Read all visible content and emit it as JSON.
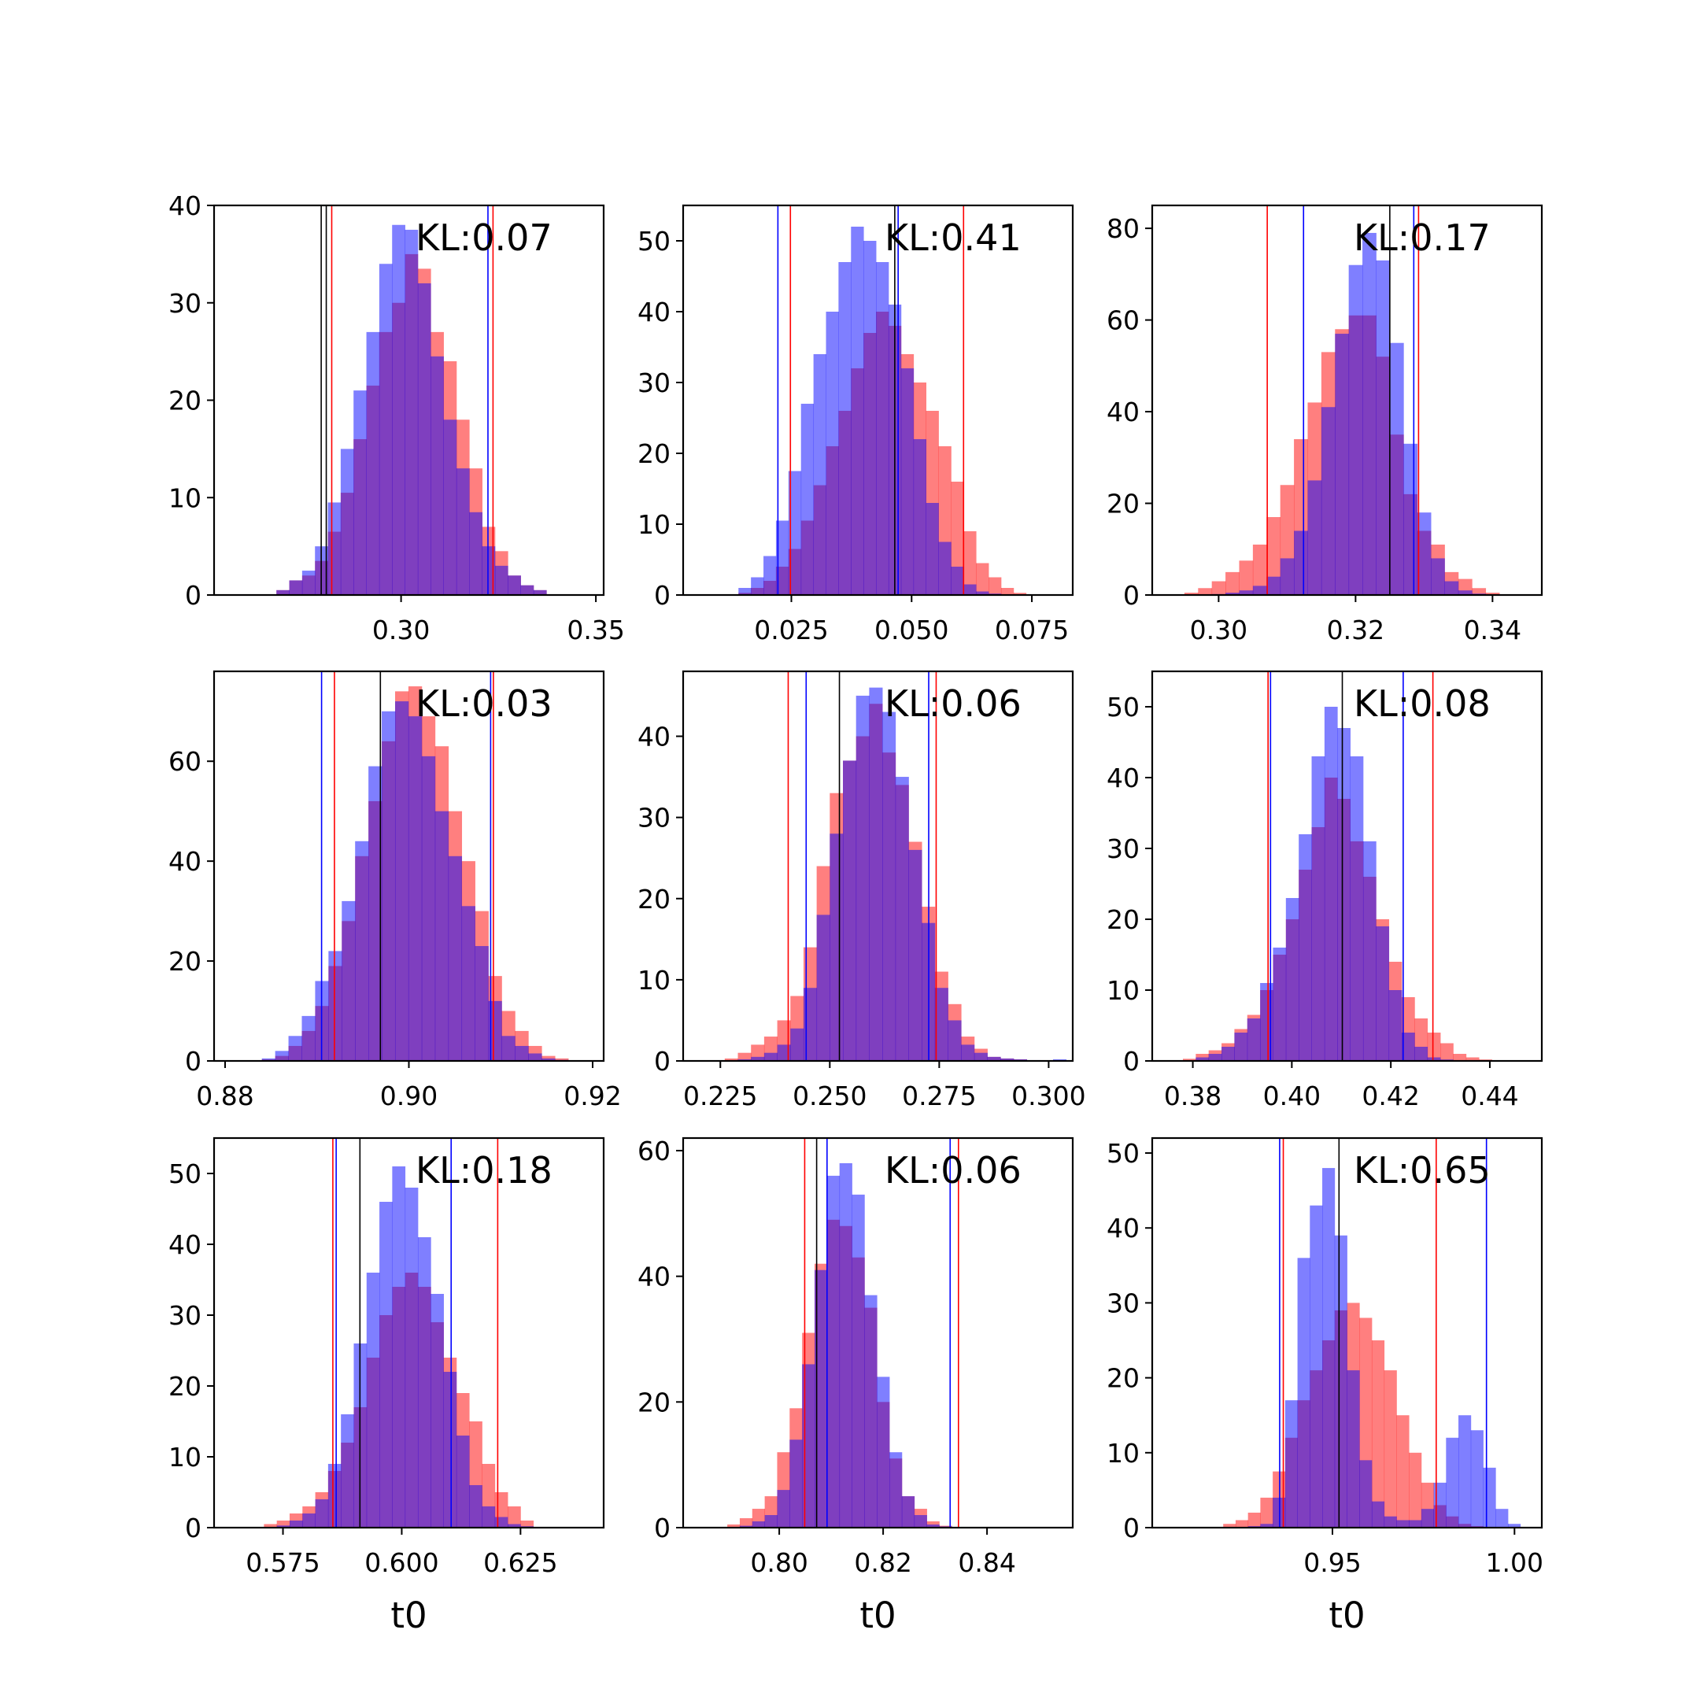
{
  "figure": {
    "colors": {
      "red": "#ff0000",
      "blue": "#0000ff",
      "black": "#000000",
      "frame": "#000000"
    },
    "opacity": 0.5
  },
  "chart_data": [
    {
      "type": "histogram",
      "kl_label": "KL:0.07",
      "xlabel": "",
      "xlim": [
        0.252,
        0.352
      ],
      "ylim": [
        0,
        40
      ],
      "xticks": [
        0.3,
        0.35
      ],
      "xtick_labels": [
        "0.30",
        "0.35"
      ],
      "yticks": [
        0,
        10,
        20,
        30,
        40
      ],
      "ytick_labels": [
        "0",
        "10",
        "20",
        "30",
        "40"
      ],
      "series": [
        {
          "name": "",
          "color": "red",
          "x_start": 0.268,
          "bin_width": 0.0033,
          "values": [
            0.5,
            1.5,
            2.0,
            3.5,
            6.5,
            10.5,
            16.0,
            21.5,
            27.0,
            30.0,
            35.0,
            33.5,
            27.0,
            24.0,
            18.0,
            13.0,
            7.0,
            4.5,
            2.0,
            1.0,
            0.5
          ]
        },
        {
          "name": "",
          "color": "blue",
          "x_start": 0.268,
          "bin_width": 0.0033,
          "values": [
            0.5,
            1.5,
            2.5,
            5.0,
            9.5,
            15.0,
            21.0,
            27.0,
            34.0,
            38.0,
            37.5,
            32.0,
            24.5,
            18.0,
            13.0,
            8.5,
            5.0,
            3.0,
            2.0,
            1.0,
            0.5
          ]
        }
      ],
      "vlines": [
        {
          "color": "black",
          "x": 0.2795
        },
        {
          "color": "black",
          "x": 0.2808
        },
        {
          "color": "red",
          "x": 0.2822
        },
        {
          "color": "red",
          "x": 0.3236
        },
        {
          "color": "blue",
          "x": 0.3223
        }
      ]
    },
    {
      "type": "histogram",
      "kl_label": "KL:0.41",
      "xlabel": "",
      "xlim": [
        0.0025,
        0.0835
      ],
      "ylim": [
        0,
        55
      ],
      "xticks": [
        0.025,
        0.05,
        0.075
      ],
      "xtick_labels": [
        "0.025",
        "0.050",
        "0.075"
      ],
      "yticks": [
        0,
        10,
        20,
        30,
        40,
        50
      ],
      "ytick_labels": [
        "0",
        "10",
        "20",
        "30",
        "40",
        "50"
      ],
      "series": [
        {
          "name": "",
          "color": "red",
          "x_start": 0.014,
          "bin_width": 0.0026,
          "values": [
            0.3,
            1.0,
            2.0,
            4.0,
            6.5,
            10.5,
            15.5,
            21.0,
            26.0,
            32.0,
            37.0,
            40.0,
            38.0,
            34.0,
            30.0,
            26.0,
            21.0,
            16.0,
            9.0,
            4.5,
            2.5,
            1.0,
            0.3
          ]
        },
        {
          "name": "",
          "color": "blue",
          "x_start": 0.014,
          "bin_width": 0.0026,
          "values": [
            1.0,
            2.5,
            5.5,
            10.5,
            17.5,
            27.0,
            34.0,
            40.0,
            47.0,
            52.0,
            50.0,
            47.0,
            41.0,
            32.0,
            22.0,
            13.0,
            7.5,
            4.0,
            1.5,
            0.5,
            0.2,
            0.0,
            0.0
          ]
        }
      ],
      "vlines": [
        {
          "color": "blue",
          "x": 0.0222
        },
        {
          "color": "red",
          "x": 0.0248
        },
        {
          "color": "black",
          "x": 0.0465
        },
        {
          "color": "blue",
          "x": 0.0472
        },
        {
          "color": "red",
          "x": 0.0608
        }
      ]
    },
    {
      "type": "histogram",
      "kl_label": "KL:0.17",
      "xlabel": "",
      "xlim": [
        0.2903,
        0.3472
      ],
      "ylim": [
        0,
        85
      ],
      "xticks": [
        0.3,
        0.32,
        0.34
      ],
      "xtick_labels": [
        "0.30",
        "0.32",
        "0.34"
      ],
      "yticks": [
        0,
        20,
        40,
        60,
        80
      ],
      "ytick_labels": [
        "0",
        "20",
        "40",
        "60",
        "80"
      ],
      "series": [
        {
          "name": "",
          "color": "red",
          "x_start": 0.295,
          "bin_width": 0.002,
          "values": [
            0.5,
            1.5,
            3.0,
            5.0,
            7.5,
            11.0,
            17.0,
            24.0,
            34.0,
            42.0,
            53.0,
            58.0,
            61.0,
            61.0,
            52.0,
            35.0,
            22.0,
            14.0,
            11.0,
            5.0,
            3.5,
            1.5,
            0.5
          ]
        },
        {
          "name": "",
          "color": "blue",
          "x_start": 0.295,
          "bin_width": 0.002,
          "values": [
            0.0,
            0.0,
            0.2,
            0.5,
            1.0,
            2.0,
            4.0,
            8.0,
            14.0,
            25.0,
            41.0,
            57.0,
            72.0,
            79.0,
            73.0,
            55.0,
            33.0,
            18.0,
            8.0,
            3.0,
            1.0,
            0.3,
            0.0
          ]
        }
      ],
      "vlines": [
        {
          "color": "red",
          "x": 0.3071
        },
        {
          "color": "blue",
          "x": 0.3124
        },
        {
          "color": "black",
          "x": 0.325
        },
        {
          "color": "blue",
          "x": 0.3285
        },
        {
          "color": "red",
          "x": 0.3292
        }
      ]
    },
    {
      "type": "histogram",
      "kl_label": "KL:0.03",
      "xlabel": "",
      "xlim": [
        0.8788,
        0.9212
      ],
      "ylim": [
        0,
        78
      ],
      "xticks": [
        0.88,
        0.9,
        0.92
      ],
      "xtick_labels": [
        "0.88",
        "0.90",
        "0.92"
      ],
      "yticks": [
        0,
        20,
        40,
        60
      ],
      "ytick_labels": [
        "0",
        "20",
        "40",
        "60"
      ],
      "series": [
        {
          "name": "",
          "color": "red",
          "x_start": 0.884,
          "bin_width": 0.00145,
          "values": [
            0.3,
            1.0,
            3.0,
            6.0,
            11.0,
            19.0,
            28.0,
            41.0,
            52.0,
            64.0,
            74.0,
            75.0,
            69.0,
            63.0,
            50.0,
            40.0,
            30.0,
            17.0,
            10.0,
            6.0,
            3.0,
            1.0,
            0.5
          ]
        },
        {
          "name": "",
          "color": "blue",
          "x_start": 0.884,
          "bin_width": 0.00145,
          "values": [
            0.5,
            2.0,
            5.0,
            9.0,
            16.0,
            22.0,
            32.0,
            44.0,
            59.0,
            70.0,
            72.0,
            69.0,
            61.0,
            50.0,
            41.0,
            31.0,
            23.0,
            12.0,
            5.0,
            3.0,
            1.5,
            0.5,
            0.2
          ]
        }
      ],
      "vlines": [
        {
          "color": "blue",
          "x": 0.8905
        },
        {
          "color": "red",
          "x": 0.8919
        },
        {
          "color": "black",
          "x": 0.8969
        },
        {
          "color": "blue",
          "x": 0.9089
        },
        {
          "color": "red",
          "x": 0.9092
        }
      ]
    },
    {
      "type": "histogram",
      "kl_label": "KL:0.06",
      "xlabel": "",
      "xlim": [
        0.2165,
        0.3055
      ],
      "ylim": [
        0,
        48
      ],
      "xticks": [
        0.225,
        0.25,
        0.275,
        0.3
      ],
      "xtick_labels": [
        "0.225",
        "0.250",
        "0.275",
        "0.300"
      ],
      "yticks": [
        0,
        10,
        20,
        30,
        40
      ],
      "ytick_labels": [
        "0",
        "10",
        "20",
        "30",
        "40"
      ],
      "series": [
        {
          "name": "",
          "color": "red",
          "x_start": 0.226,
          "bin_width": 0.003,
          "values": [
            0.3,
            1.0,
            2.0,
            3.0,
            5.0,
            8.0,
            14.0,
            24.0,
            33.0,
            37.0,
            40.0,
            44.0,
            38.0,
            34.0,
            27.0,
            19.0,
            11.0,
            7.0,
            3.0,
            1.5,
            0.5,
            0.3,
            0.2,
            0.0,
            0.0,
            0.0
          ]
        },
        {
          "name": "",
          "color": "blue",
          "x_start": 0.226,
          "bin_width": 0.003,
          "values": [
            0.0,
            0.2,
            0.5,
            1.0,
            2.0,
            4.0,
            9.0,
            18.0,
            28.0,
            37.0,
            45.0,
            46.0,
            43.0,
            35.0,
            26.0,
            17.0,
            9.0,
            5.0,
            2.0,
            1.0,
            0.5,
            0.3,
            0.2,
            0.1,
            0.0,
            0.2
          ]
        }
      ],
      "vlines": [
        {
          "color": "red",
          "x": 0.2405
        },
        {
          "color": "blue",
          "x": 0.2446
        },
        {
          "color": "black",
          "x": 0.2522
        },
        {
          "color": "blue",
          "x": 0.2726
        },
        {
          "color": "red",
          "x": 0.2743
        }
      ]
    },
    {
      "type": "histogram",
      "kl_label": "KL:0.08",
      "xlabel": "",
      "xlim": [
        0.3718,
        0.4505
      ],
      "ylim": [
        0,
        55
      ],
      "xticks": [
        0.38,
        0.4,
        0.42,
        0.44
      ],
      "xtick_labels": [
        "0.38",
        "0.40",
        "0.42",
        "0.44"
      ],
      "yticks": [
        0,
        10,
        20,
        30,
        40,
        50
      ],
      "ytick_labels": [
        "0",
        "10",
        "20",
        "30",
        "40",
        "50"
      ],
      "series": [
        {
          "name": "",
          "color": "red",
          "x_start": 0.378,
          "bin_width": 0.0026,
          "values": [
            0.3,
            1.0,
            1.5,
            2.5,
            4.5,
            6.5,
            10.0,
            15.0,
            20.0,
            27.0,
            33.0,
            40.0,
            37.0,
            31.0,
            26.0,
            20.0,
            14.0,
            9.0,
            6.0,
            4.0,
            2.5,
            1.0,
            0.5,
            0.2
          ]
        },
        {
          "name": "",
          "color": "blue",
          "x_start": 0.378,
          "bin_width": 0.0026,
          "values": [
            0.0,
            0.5,
            1.0,
            2.0,
            4.0,
            6.0,
            11.0,
            16.0,
            23.0,
            32.0,
            43.0,
            50.0,
            47.0,
            43.0,
            31.0,
            19.0,
            10.0,
            4.0,
            2.0,
            0.5,
            0.2,
            0.0,
            0.0,
            0.0
          ]
        }
      ],
      "vlines": [
        {
          "color": "red",
          "x": 0.3952
        },
        {
          "color": "blue",
          "x": 0.3957
        },
        {
          "color": "black",
          "x": 0.4102
        },
        {
          "color": "blue",
          "x": 0.4225
        },
        {
          "color": "red",
          "x": 0.4285
        }
      ]
    },
    {
      "type": "histogram",
      "kl_label": "KL:0.18",
      "xlabel": "t0",
      "xlim": [
        0.5605,
        0.6425
      ],
      "ylim": [
        0,
        55
      ],
      "xticks": [
        0.575,
        0.6,
        0.625
      ],
      "xtick_labels": [
        "0.575",
        "0.600",
        "0.625"
      ],
      "yticks": [
        0,
        10,
        20,
        30,
        40,
        50
      ],
      "ytick_labels": [
        "0",
        "10",
        "20",
        "30",
        "40",
        "50"
      ],
      "series": [
        {
          "name": "",
          "color": "red",
          "x_start": 0.571,
          "bin_width": 0.0027,
          "values": [
            0.5,
            1.0,
            2.0,
            3.0,
            5.0,
            8.0,
            12.0,
            17.0,
            24.0,
            30.0,
            34.0,
            36.0,
            34.0,
            29.0,
            24.0,
            19.0,
            15.0,
            9.0,
            5.0,
            3.0,
            1.0
          ]
        },
        {
          "name": "",
          "color": "blue",
          "x_start": 0.571,
          "bin_width": 0.0027,
          "values": [
            0.0,
            0.3,
            1.0,
            2.0,
            4.0,
            9.0,
            16.0,
            26.0,
            36.0,
            46.0,
            51.0,
            48.0,
            41.0,
            33.0,
            22.0,
            13.0,
            6.0,
            3.0,
            1.5,
            0.5,
            0.2
          ]
        }
      ],
      "vlines": [
        {
          "color": "red",
          "x": 0.5855
        },
        {
          "color": "blue",
          "x": 0.5862
        },
        {
          "color": "black",
          "x": 0.5912
        },
        {
          "color": "blue",
          "x": 0.6104
        },
        {
          "color": "red",
          "x": 0.6202
        }
      ]
    },
    {
      "type": "histogram",
      "kl_label": "KL:0.06",
      "xlabel": "t0",
      "xlim": [
        0.7815,
        0.8565
      ],
      "ylim": [
        0,
        62
      ],
      "xticks": [
        0.8,
        0.82,
        0.84
      ],
      "xtick_labels": [
        "0.80",
        "0.82",
        "0.84"
      ],
      "yticks": [
        0,
        20,
        40,
        60
      ],
      "ytick_labels": [
        "0",
        "20",
        "40",
        "60"
      ],
      "series": [
        {
          "name": "",
          "color": "red",
          "x_start": 0.79,
          "bin_width": 0.0024,
          "values": [
            0.5,
            1.5,
            3.0,
            5.0,
            12.0,
            19.0,
            31.0,
            42.0,
            49.0,
            48.0,
            43.0,
            35.0,
            20.0,
            11.0,
            5.0,
            3.0,
            1.0,
            0.3
          ]
        },
        {
          "name": "",
          "color": "blue",
          "x_start": 0.79,
          "bin_width": 0.0024,
          "values": [
            0.0,
            0.3,
            1.0,
            2.0,
            6.0,
            14.0,
            26.0,
            41.0,
            56.0,
            58.0,
            53.0,
            37.0,
            24.0,
            12.0,
            5.0,
            2.0,
            0.5,
            0.2
          ]
        }
      ],
      "vlines": [
        {
          "color": "red",
          "x": 0.8049
        },
        {
          "color": "black",
          "x": 0.8072
        },
        {
          "color": "blue",
          "x": 0.8092
        },
        {
          "color": "blue",
          "x": 0.8329
        },
        {
          "color": "red",
          "x": 0.8345
        }
      ]
    },
    {
      "type": "histogram",
      "kl_label": "KL:0.65",
      "xlabel": "t0",
      "xlim": [
        0.9005,
        1.0075
      ],
      "ylim": [
        0,
        52
      ],
      "xticks": [
        0.95,
        1.0
      ],
      "xtick_labels": [
        "0.95",
        "1.00"
      ],
      "yticks": [
        0,
        10,
        20,
        30,
        40,
        50
      ],
      "ytick_labels": [
        "0",
        "10",
        "20",
        "30",
        "40",
        "50"
      ],
      "series": [
        {
          "name": "",
          "color": "red",
          "x_start": 0.92,
          "bin_width": 0.0034,
          "values": [
            0.5,
            1.0,
            2.0,
            4.0,
            7.5,
            12.0,
            17.0,
            21.0,
            25.0,
            29.0,
            30.0,
            28.0,
            25.0,
            21.0,
            15.0,
            10.0,
            6.0,
            3.0,
            1.5,
            0.5,
            0.2,
            0.0,
            0.0,
            0.0
          ]
        },
        {
          "name": "",
          "color": "blue",
          "x_start": 0.92,
          "bin_width": 0.0034,
          "values": [
            0.0,
            0.0,
            0.2,
            0.5,
            4.0,
            17.0,
            36.0,
            43.0,
            48.0,
            39.0,
            21.0,
            9.0,
            3.5,
            1.5,
            1.0,
            1.0,
            2.5,
            6.0,
            12.0,
            15.0,
            13.0,
            8.0,
            2.5,
            0.5
          ]
        }
      ],
      "vlines": [
        {
          "color": "blue",
          "x": 0.9355
        },
        {
          "color": "red",
          "x": 0.9365
        },
        {
          "color": "black",
          "x": 0.9518
        },
        {
          "color": "red",
          "x": 0.9785
        },
        {
          "color": "blue",
          "x": 0.9923
        }
      ]
    }
  ]
}
